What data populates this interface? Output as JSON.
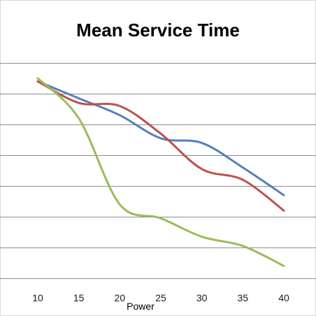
{
  "chart_data": {
    "type": "line",
    "title": "Mean Service Time",
    "xlabel": "Power",
    "ylabel": "",
    "x": [
      10,
      15,
      20,
      25,
      30,
      35,
      40
    ],
    "ylim": [
      0,
      7
    ],
    "grid": true,
    "legend": "none",
    "series": [
      {
        "color": "#4f81bd",
        "values": [
          6.4,
          5.85,
          5.3,
          4.55,
          4.4,
          3.6,
          2.7
        ]
      },
      {
        "color": "#c0504d",
        "values": [
          6.4,
          5.7,
          5.6,
          4.7,
          3.55,
          3.2,
          2.2
        ]
      },
      {
        "color": "#9bbb59",
        "values": [
          6.5,
          5.2,
          2.4,
          1.95,
          1.35,
          1.05,
          0.4
        ]
      }
    ]
  }
}
